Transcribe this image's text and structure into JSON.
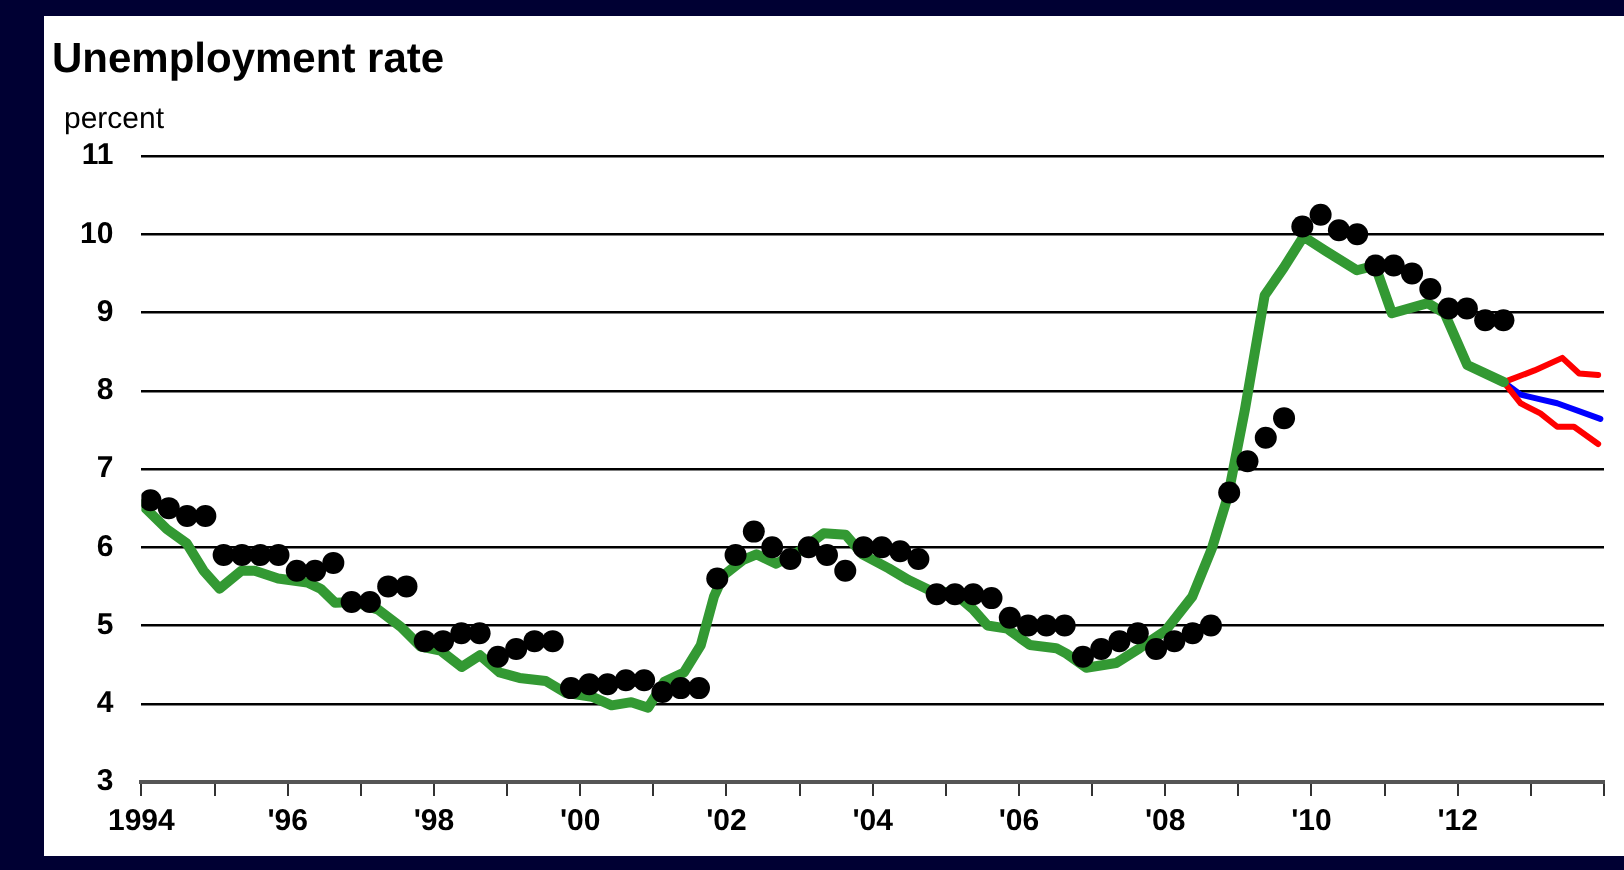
{
  "chart_data": {
    "type": "line",
    "title": "Unemployment rate",
    "ylabel": "percent",
    "xlim": [
      1994,
      2014
    ],
    "xticks": [
      {
        "value": 1994,
        "label": "1994"
      },
      {
        "value": 1995,
        "label": null
      },
      {
        "value": 1996,
        "label": "'96"
      },
      {
        "value": 1997,
        "label": null
      },
      {
        "value": 1998,
        "label": "'98"
      },
      {
        "value": 1999,
        "label": null
      },
      {
        "value": 2000,
        "label": "'00"
      },
      {
        "value": 2001,
        "label": null
      },
      {
        "value": 2002,
        "label": "'02"
      },
      {
        "value": 2003,
        "label": null
      },
      {
        "value": 2004,
        "label": "'04"
      },
      {
        "value": 2005,
        "label": null
      },
      {
        "value": 2006,
        "label": "'06"
      },
      {
        "value": 2007,
        "label": null
      },
      {
        "value": 2008,
        "label": "'08"
      },
      {
        "value": 2009,
        "label": null
      },
      {
        "value": 2010,
        "label": "'10"
      },
      {
        "value": 2011,
        "label": null
      },
      {
        "value": 2012,
        "label": "'12"
      },
      {
        "value": 2013,
        "label": null
      },
      {
        "value": 2014,
        "label": null
      }
    ],
    "ylim": [
      3,
      11
    ],
    "yticks": [
      3,
      4,
      5,
      6,
      7,
      8,
      9,
      10,
      11
    ],
    "grid": "y",
    "legend": false,
    "series": [
      {
        "type": "line",
        "color": "#339933",
        "marker": "none",
        "x": [
          1994.0,
          1994.35,
          1994.62,
          1994.85,
          1995.07,
          1995.37,
          1995.55,
          1995.87,
          1996.27,
          1996.45,
          1996.65,
          1996.92,
          1997.24,
          1997.55,
          1997.82,
          1998.09,
          1998.38,
          1998.63,
          1998.9,
          1999.17,
          1999.53,
          1999.8,
          2000.16,
          2000.43,
          2000.7,
          2000.93,
          2001.15,
          2001.42,
          2001.65,
          2001.83,
          2001.96,
          2002.23,
          2002.41,
          2002.68,
          2003.0,
          2003.33,
          2003.63,
          2003.86,
          2004.22,
          2004.49,
          2004.8,
          2005.11,
          2005.38,
          2005.57,
          2005.84,
          2006.15,
          2006.51,
          2006.65,
          2006.92,
          2007.33,
          2007.65,
          2008.0,
          2008.37,
          2008.64,
          2008.86,
          2009.09,
          2009.36,
          2009.62,
          2009.89,
          2010.19,
          2010.62,
          2010.87,
          2011.1,
          2011.59,
          2011.82,
          2012.13,
          2012.63
        ],
        "values": [
          6.55,
          6.23,
          6.05,
          5.7,
          5.47,
          5.7,
          5.7,
          5.6,
          5.55,
          5.47,
          5.29,
          5.3,
          5.2,
          4.98,
          4.73,
          4.68,
          4.47,
          4.62,
          4.4,
          4.33,
          4.29,
          4.14,
          4.09,
          3.98,
          4.02,
          3.95,
          4.28,
          4.4,
          4.75,
          5.37,
          5.64,
          5.84,
          5.91,
          5.79,
          5.95,
          6.18,
          6.16,
          5.91,
          5.73,
          5.58,
          5.44,
          5.42,
          5.2,
          5.0,
          4.96,
          4.75,
          4.71,
          4.64,
          4.46,
          4.52,
          4.71,
          4.93,
          5.37,
          5.99,
          6.66,
          7.76,
          9.22,
          9.57,
          9.97,
          9.79,
          9.54,
          9.6,
          8.99,
          9.12,
          8.99,
          8.33,
          8.11
        ]
      },
      {
        "type": "scatter",
        "color": "#000000",
        "marker": "circle",
        "x": [
          1994.125,
          1994.375,
          1994.625,
          1994.875,
          1995.125,
          1995.375,
          1995.625,
          1995.875,
          1996.125,
          1996.375,
          1996.625,
          1996.875,
          1997.125,
          1997.375,
          1997.625,
          1997.875,
          1998.125,
          1998.375,
          1998.625,
          1998.875,
          1999.125,
          1999.375,
          1999.625,
          1999.875,
          2000.125,
          2000.375,
          2000.625,
          2000.875,
          2001.125,
          2001.375,
          2001.625,
          2001.875,
          2002.125,
          2002.375,
          2002.625,
          2002.875,
          2003.125,
          2003.375,
          2003.625,
          2003.875,
          2004.125,
          2004.375,
          2004.625,
          2004.875,
          2005.125,
          2005.375,
          2005.625,
          2005.875,
          2006.125,
          2006.375,
          2006.625,
          2006.875,
          2007.125,
          2007.375,
          2007.625,
          2007.875,
          2008.125,
          2008.375,
          2008.625,
          2008.875,
          2009.125,
          2009.375,
          2009.625,
          2009.875,
          2010.125,
          2010.375,
          2010.625,
          2010.875,
          2011.125,
          2011.375,
          2011.625,
          2011.875,
          2012.125,
          2012.375,
          2012.625
        ],
        "values": [
          6.6,
          6.5,
          6.4,
          6.4,
          5.9,
          5.9,
          5.9,
          5.9,
          5.7,
          5.7,
          5.8,
          5.3,
          5.3,
          5.5,
          5.5,
          4.8,
          4.8,
          4.9,
          4.9,
          4.6,
          4.7,
          4.8,
          4.8,
          4.2,
          4.25,
          4.25,
          4.3,
          4.3,
          4.15,
          4.2,
          4.2,
          5.6,
          5.9,
          6.2,
          6.0,
          5.85,
          6.0,
          5.9,
          5.7,
          6.0,
          6.0,
          5.95,
          5.85,
          5.4,
          5.4,
          5.4,
          5.35,
          5.1,
          5.0,
          5.0,
          5.0,
          4.6,
          4.7,
          4.8,
          4.9,
          4.7,
          4.8,
          4.9,
          5.0,
          6.7,
          7.1,
          7.4,
          7.65,
          10.1,
          10.25,
          10.05,
          10.0,
          9.6,
          9.6,
          9.5,
          9.3,
          9.05,
          9.05,
          8.9,
          8.9
        ]
      },
      {
        "type": "line",
        "color": "#ff0000",
        "marker": "none",
        "x": [
          2012.63,
          2013.05,
          2013.43,
          2013.66,
          2013.92
        ],
        "values": [
          8.11,
          8.26,
          8.42,
          8.22,
          8.2
        ]
      },
      {
        "type": "line",
        "color": "#ff0000",
        "marker": "none",
        "x": [
          2012.63,
          2012.86,
          2013.13,
          2013.36,
          2013.59,
          2013.92
        ],
        "values": [
          8.11,
          7.84,
          7.71,
          7.54,
          7.54,
          7.32
        ]
      },
      {
        "type": "line",
        "color": "#0000ff",
        "marker": "none",
        "x": [
          2012.63,
          2012.86,
          2013.13,
          2013.36,
          2013.95
        ],
        "values": [
          8.11,
          7.95,
          7.89,
          7.84,
          7.64
        ]
      }
    ]
  }
}
